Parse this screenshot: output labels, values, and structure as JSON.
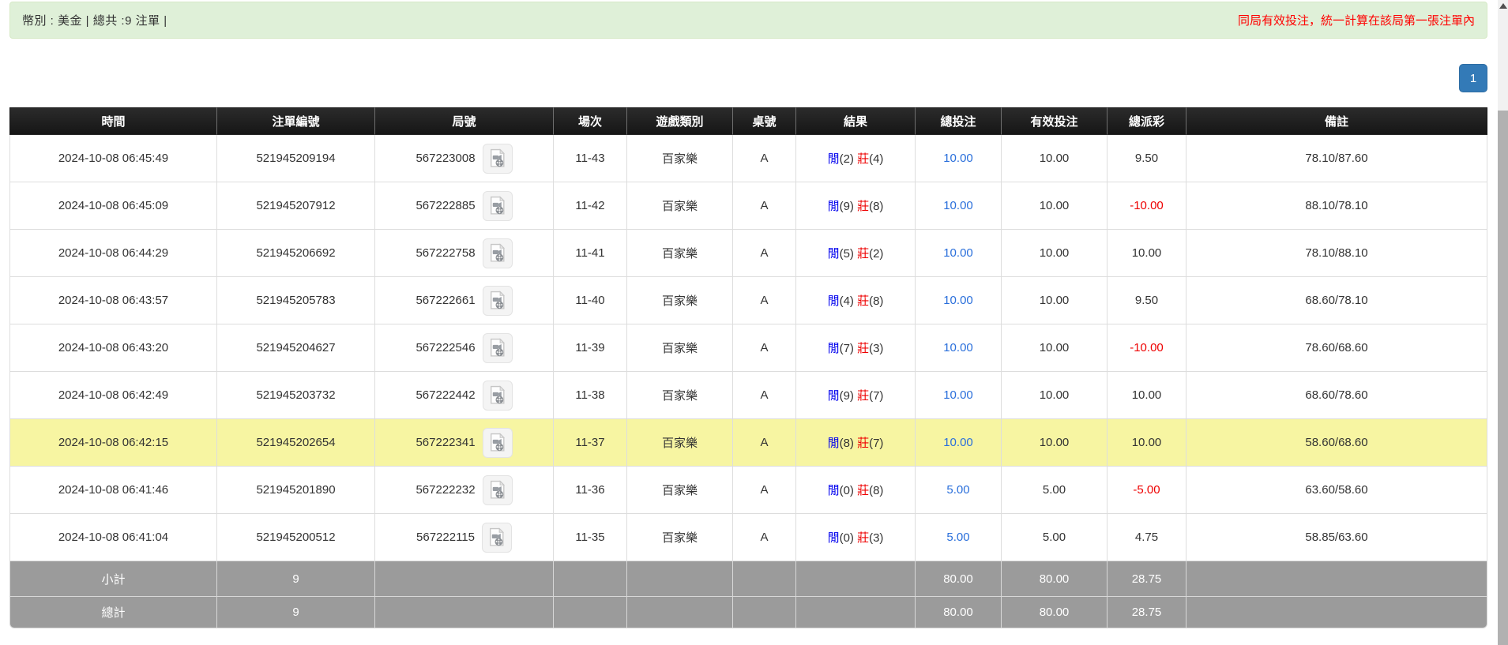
{
  "alert": {
    "summary": "幣別 : 美金 | 總共 :9 注單 |",
    "notice": "同局有效投注，統一計算在該局第一張注單內"
  },
  "pagination": {
    "current_page": "1"
  },
  "icons": {
    "round_video": "video-file-icon",
    "scroll_up": "scroll-up-arrow"
  },
  "colors": {
    "alert_bg": "#dff0d8",
    "alert_border": "#d6e9c6",
    "notice_red": "#ff0000",
    "pagination_blue": "#337ab7",
    "header_bg": "#1e1e1e",
    "player_blue": "#0000ee",
    "banker_red": "#ee0000",
    "bet_link_blue": "#2a6fdb",
    "negative_red": "#ee0000",
    "highlight_yellow": "#f7f5a2",
    "footer_gray": "#9b9b9b"
  },
  "table": {
    "headers": [
      "時間",
      "注單編號",
      "局號",
      "場次",
      "遊戲類別",
      "桌號",
      "結果",
      "總投注",
      "有效投注",
      "總派彩",
      "備註"
    ],
    "header_keys": [
      "time",
      "bet-id",
      "round-id",
      "session",
      "game-type",
      "table",
      "result",
      "total-bet",
      "valid-bet",
      "payout",
      "remark"
    ],
    "result_labels": {
      "player": "閒",
      "banker": "莊"
    },
    "rows": [
      {
        "time": "2024-10-08 06:45:49",
        "bet_id": "521945209194",
        "round_id": "567223008",
        "session": "11-43",
        "game": "百家樂",
        "table_id": "A",
        "result": {
          "player": "2",
          "banker": "4"
        },
        "total_bet": "10.00",
        "valid_bet": "10.00",
        "payout": "9.50",
        "remark": "78.10/87.60",
        "highlighted": false
      },
      {
        "time": "2024-10-08 06:45:09",
        "bet_id": "521945207912",
        "round_id": "567222885",
        "session": "11-42",
        "game": "百家樂",
        "table_id": "A",
        "result": {
          "player": "9",
          "banker": "8"
        },
        "total_bet": "10.00",
        "valid_bet": "10.00",
        "payout": "-10.00",
        "remark": "88.10/78.10",
        "highlighted": false
      },
      {
        "time": "2024-10-08 06:44:29",
        "bet_id": "521945206692",
        "round_id": "567222758",
        "session": "11-41",
        "game": "百家樂",
        "table_id": "A",
        "result": {
          "player": "5",
          "banker": "2"
        },
        "total_bet": "10.00",
        "valid_bet": "10.00",
        "payout": "10.00",
        "remark": "78.10/88.10",
        "highlighted": false
      },
      {
        "time": "2024-10-08 06:43:57",
        "bet_id": "521945205783",
        "round_id": "567222661",
        "session": "11-40",
        "game": "百家樂",
        "table_id": "A",
        "result": {
          "player": "4",
          "banker": "8"
        },
        "total_bet": "10.00",
        "valid_bet": "10.00",
        "payout": "9.50",
        "remark": "68.60/78.10",
        "highlighted": false
      },
      {
        "time": "2024-10-08 06:43:20",
        "bet_id": "521945204627",
        "round_id": "567222546",
        "session": "11-39",
        "game": "百家樂",
        "table_id": "A",
        "result": {
          "player": "7",
          "banker": "3"
        },
        "total_bet": "10.00",
        "valid_bet": "10.00",
        "payout": "-10.00",
        "remark": "78.60/68.60",
        "highlighted": false
      },
      {
        "time": "2024-10-08 06:42:49",
        "bet_id": "521945203732",
        "round_id": "567222442",
        "session": "11-38",
        "game": "百家樂",
        "table_id": "A",
        "result": {
          "player": "9",
          "banker": "7"
        },
        "total_bet": "10.00",
        "valid_bet": "10.00",
        "payout": "10.00",
        "remark": "68.60/78.60",
        "highlighted": false
      },
      {
        "time": "2024-10-08 06:42:15",
        "bet_id": "521945202654",
        "round_id": "567222341",
        "session": "11-37",
        "game": "百家樂",
        "table_id": "A",
        "result": {
          "player": "8",
          "banker": "7"
        },
        "total_bet": "10.00",
        "valid_bet": "10.00",
        "payout": "10.00",
        "remark": "58.60/68.60",
        "highlighted": true
      },
      {
        "time": "2024-10-08 06:41:46",
        "bet_id": "521945201890",
        "round_id": "567222232",
        "session": "11-36",
        "game": "百家樂",
        "table_id": "A",
        "result": {
          "player": "0",
          "banker": "8"
        },
        "total_bet": "5.00",
        "valid_bet": "5.00",
        "payout": "-5.00",
        "remark": "63.60/58.60",
        "highlighted": false
      },
      {
        "time": "2024-10-08 06:41:04",
        "bet_id": "521945200512",
        "round_id": "567222115",
        "session": "11-35",
        "game": "百家樂",
        "table_id": "A",
        "result": {
          "player": "0",
          "banker": "3"
        },
        "total_bet": "5.00",
        "valid_bet": "5.00",
        "payout": "4.75",
        "remark": "58.85/63.60",
        "highlighted": false
      }
    ],
    "footer": [
      {
        "label": "小計",
        "count": "9",
        "total_bet": "80.00",
        "valid_bet": "80.00",
        "payout": "28.75"
      },
      {
        "label": "總計",
        "count": "9",
        "total_bet": "80.00",
        "valid_bet": "80.00",
        "payout": "28.75"
      }
    ]
  }
}
